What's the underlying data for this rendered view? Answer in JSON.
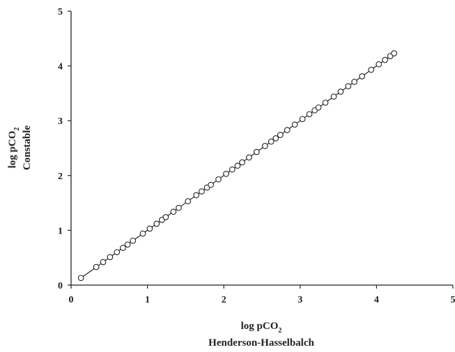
{
  "chart_data": {
    "type": "scatter",
    "xlabel_line1": "log pCO",
    "xlabel_sub": "2",
    "xlabel_line2": "Henderson-Hasselbalch",
    "ylabel_line1": "log pCO",
    "ylabel_sub": "2",
    "ylabel_line2": "Constable",
    "xlim": [
      0,
      5
    ],
    "ylim": [
      0,
      5
    ],
    "x_ticks": [
      "0",
      "1",
      "2",
      "3",
      "4",
      "5"
    ],
    "y_ticks": [
      "0",
      "1",
      "2",
      "3",
      "4",
      "5"
    ],
    "grid": false,
    "legend": "none",
    "marker": "open-circle",
    "has_line": true,
    "x": [
      0.13,
      0.33,
      0.42,
      0.51,
      0.6,
      0.68,
      0.74,
      0.81,
      0.94,
      1.03,
      1.12,
      1.19,
      1.24,
      1.34,
      1.41,
      1.53,
      1.64,
      1.71,
      1.78,
      1.83,
      1.93,
      2.03,
      2.11,
      2.18,
      2.24,
      2.33,
      2.43,
      2.54,
      2.62,
      2.68,
      2.74,
      2.83,
      2.93,
      3.03,
      3.12,
      3.19,
      3.24,
      3.33,
      3.44,
      3.53,
      3.63,
      3.71,
      3.81,
      3.93,
      4.03,
      4.11,
      4.18,
      4.23
    ],
    "y": [
      0.13,
      0.33,
      0.42,
      0.51,
      0.6,
      0.68,
      0.74,
      0.81,
      0.94,
      1.03,
      1.12,
      1.19,
      1.24,
      1.34,
      1.41,
      1.53,
      1.64,
      1.71,
      1.78,
      1.83,
      1.93,
      2.03,
      2.11,
      2.18,
      2.24,
      2.33,
      2.43,
      2.54,
      2.62,
      2.68,
      2.74,
      2.83,
      2.93,
      3.03,
      3.12,
      3.19,
      3.24,
      3.33,
      3.44,
      3.53,
      3.63,
      3.71,
      3.81,
      3.93,
      4.03,
      4.11,
      4.18,
      4.23
    ]
  }
}
